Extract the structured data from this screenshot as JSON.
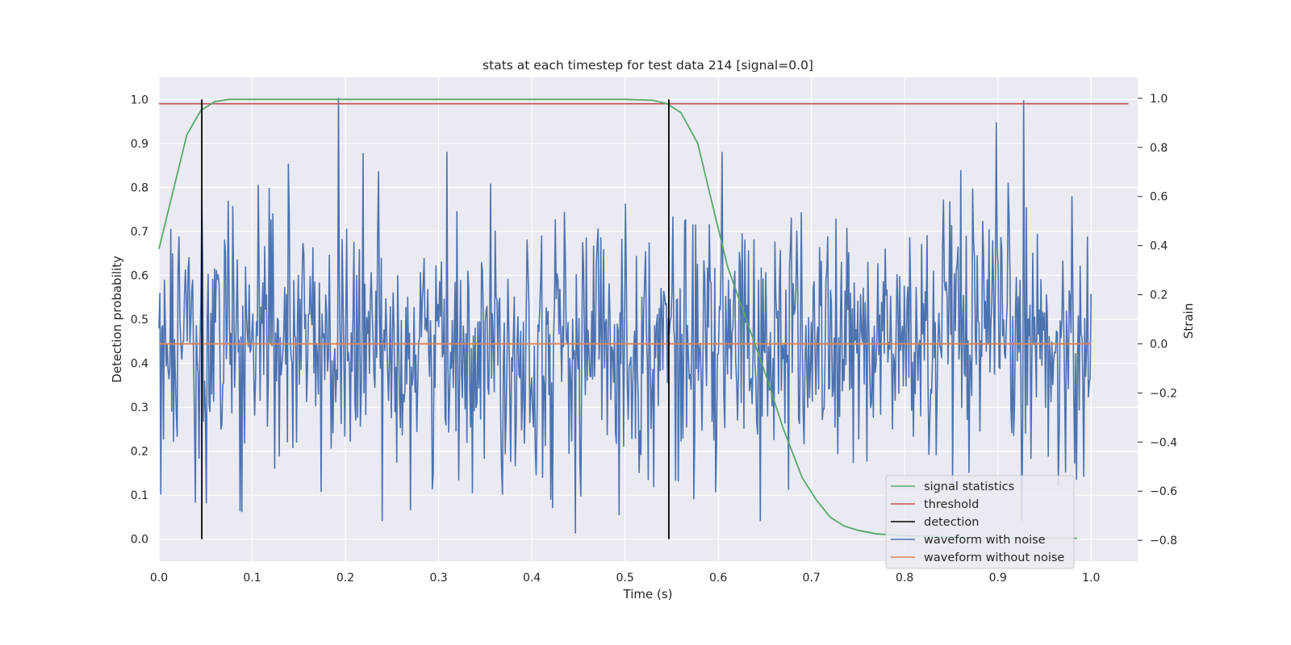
{
  "chart_data": {
    "type": "line",
    "title": "stats at each timestep for test data 214 [signal=0.0]",
    "xlabel": "Time (s)",
    "ylabel_left": "Detection probability",
    "ylabel_right": "Strain",
    "xlim": [
      0.0,
      1.05
    ],
    "ylim_left": [
      -0.05,
      1.05
    ],
    "ylim_right": [
      -0.885,
      1.085
    ],
    "x_ticks": [
      "0.0",
      "0.1",
      "0.2",
      "0.3",
      "0.4",
      "0.5",
      "0.6",
      "0.7",
      "0.8",
      "0.9",
      "1.0"
    ],
    "y_ticks_left": [
      "0.0",
      "0.1",
      "0.2",
      "0.3",
      "0.4",
      "0.5",
      "0.6",
      "0.7",
      "0.8",
      "0.9",
      "1.0"
    ],
    "y_ticks_right": [
      "−0.8",
      "−0.6",
      "−0.4",
      "−0.2",
      "0.0",
      "0.2",
      "0.4",
      "0.6",
      "0.8",
      "1.0"
    ],
    "grid": true,
    "legend_position": "bottom-right",
    "colors": {
      "signal_statistics": "#55a868",
      "threshold": "#c44e52",
      "detection": "#000000",
      "waveform_with_noise": "#4c72b0",
      "waveform_without_noise": "#dd8452",
      "background": "#eaeaf2",
      "grid": "#ffffff"
    },
    "series": [
      {
        "name": "signal statistics",
        "axis": "left",
        "x": [
          0.0,
          0.015,
          0.03,
          0.045,
          0.06,
          0.075,
          0.1,
          0.2,
          0.3,
          0.4,
          0.5,
          0.53,
          0.545,
          0.56,
          0.578,
          0.595,
          0.61,
          0.63,
          0.65,
          0.67,
          0.69,
          0.705,
          0.72,
          0.735,
          0.75,
          0.77,
          0.8,
          0.85,
          0.9,
          0.95,
          0.985
        ],
        "y": [
          0.66,
          0.79,
          0.92,
          0.975,
          0.995,
          1.0,
          1.0,
          1.0,
          1.0,
          1.0,
          1.0,
          0.998,
          0.99,
          0.97,
          0.9,
          0.75,
          0.62,
          0.5,
          0.38,
          0.25,
          0.14,
          0.09,
          0.05,
          0.03,
          0.02,
          0.012,
          0.008,
          0.005,
          0.003,
          0.002,
          0.002
        ]
      },
      {
        "name": "threshold",
        "axis": "left",
        "x": [
          0.0,
          1.04
        ],
        "y": [
          0.99,
          0.99
        ]
      },
      {
        "name": "detection",
        "axis": "left",
        "x": [
          0.046,
          0.547
        ],
        "y_range": [
          0.0,
          1.0
        ]
      },
      {
        "name": "waveform with noise",
        "axis": "right",
        "x_range": [
          0.0,
          1.0
        ],
        "samples": 1024,
        "mean": 0.0,
        "std": 0.26,
        "peaks": [
          {
            "x": 0.193,
            "y": 1.0
          },
          {
            "x": 0.928,
            "y": 0.99
          },
          {
            "x": 0.898,
            "y": 0.9
          },
          {
            "x": 0.447,
            "y": -0.77
          },
          {
            "x": 0.087,
            "y": -0.68
          }
        ]
      },
      {
        "name": "waveform without noise",
        "axis": "right",
        "x": [
          0.0,
          1.0
        ],
        "y": [
          0.0,
          0.0
        ]
      }
    ]
  }
}
